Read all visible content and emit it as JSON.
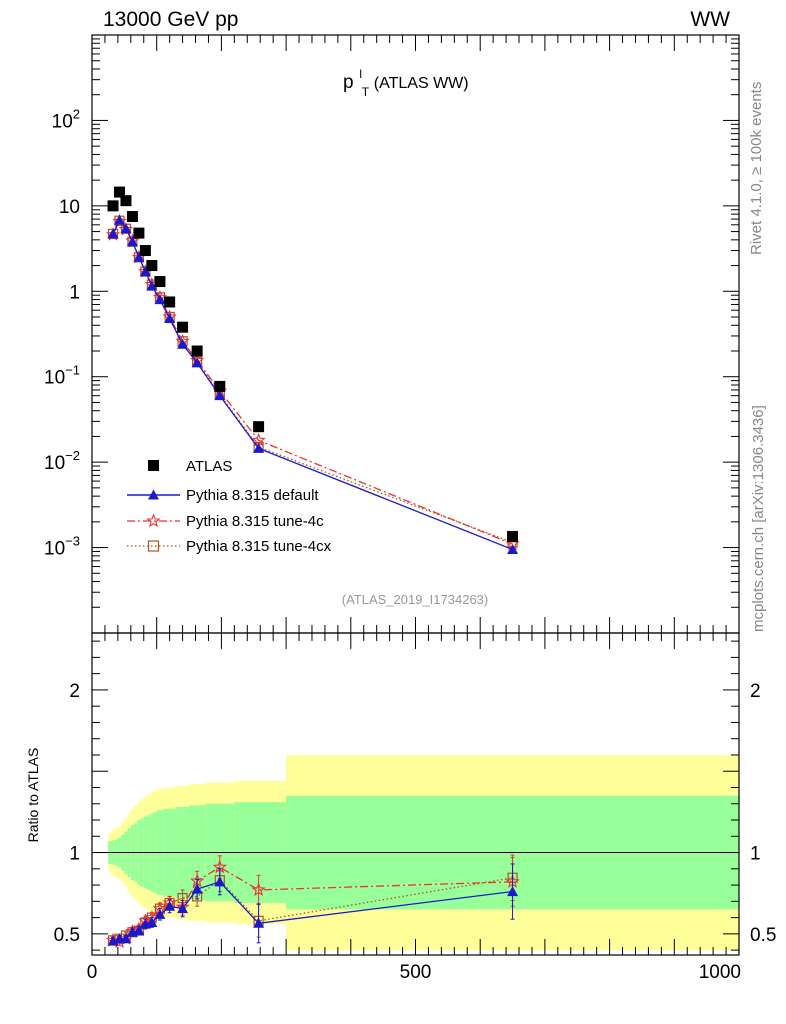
{
  "header": {
    "left": "13000 GeV pp",
    "right": "WW"
  },
  "side_labels": {
    "rivet": "Rivet 4.1.0, ≥ 100k events",
    "mcplots": "mcplots.cern.ch [arXiv:1306.3436]"
  },
  "chart_data": [
    {
      "type": "scatter",
      "panel": "main",
      "title": {
        "base": "p",
        "sup": "l",
        "sub": "T",
        "suffix": " (ATLAS WW)"
      },
      "analysis_tag": "(ATLAS_2019_I1734263)",
      "yscale": "log",
      "ylim": [
        0.0001,
        1000
      ],
      "xlim": [
        0,
        1000
      ],
      "ytick_labels": [
        {
          "value": 0.001,
          "base": "10",
          "exp": "−3"
        },
        {
          "value": 0.01,
          "base": "10",
          "exp": "−2"
        },
        {
          "value": 0.1,
          "base": "10",
          "exp": "−1"
        },
        {
          "value": 1,
          "base": "1",
          "exp": ""
        },
        {
          "value": 10,
          "base": "10",
          "exp": ""
        },
        {
          "value": 100,
          "base": "10",
          "exp": "2"
        }
      ],
      "legend_position": "bottom-left",
      "legend": [
        "ATLAS",
        "Pythia 8.315 default",
        "Pythia 8.315 tune-4c",
        "Pythia 8.315 tune-4cx"
      ],
      "x": [
        32.5,
        42.5,
        52.5,
        62.5,
        72.5,
        82.5,
        92.5,
        105,
        120,
        140,
        162.5,
        197.5,
        257.5,
        650
      ],
      "series": [
        {
          "name": "ATLAS",
          "color": "#000000",
          "marker": "square",
          "values": [
            10,
            14.5,
            11.5,
            7.5,
            4.8,
            3.0,
            2.0,
            1.3,
            0.75,
            0.38,
            0.2,
            0.077,
            0.026,
            0.00135
          ]
        },
        {
          "name": "Pythia 8.315 default",
          "color": "#1a1acc",
          "marker": "triangle",
          "line": "solid",
          "values": [
            4.7,
            6.8,
            5.4,
            3.8,
            2.5,
            1.7,
            1.15,
            0.8,
            0.48,
            0.24,
            0.145,
            0.06,
            0.0145,
            0.00095
          ]
        },
        {
          "name": "Pythia 8.315 tune-4c",
          "color": "#ee3333",
          "marker": "star",
          "line": "dashdot",
          "values": [
            4.6,
            6.6,
            5.3,
            3.9,
            2.5,
            1.7,
            1.2,
            0.85,
            0.5,
            0.26,
            0.155,
            0.068,
            0.018,
            0.0011
          ]
        },
        {
          "name": "Pythia 8.315 tune-4cx",
          "color": "#aa5522",
          "marker": "square-open",
          "line": "dotted",
          "values": [
            4.7,
            6.7,
            5.4,
            3.8,
            2.5,
            1.7,
            1.2,
            0.85,
            0.5,
            0.26,
            0.15,
            0.062,
            0.015,
            0.00115
          ]
        }
      ]
    },
    {
      "type": "scatter",
      "panel": "ratio",
      "ylabel": "Ratio to ATLAS",
      "ylim": [
        0.37,
        2.35
      ],
      "xlim": [
        0,
        1000
      ],
      "xtick_labels": [
        {
          "value": 0,
          "label": "0"
        },
        {
          "value": 500,
          "label": "500"
        },
        {
          "value": 1000,
          "label": "1000"
        }
      ],
      "ytick_labels": [
        {
          "value": 0.5,
          "label": "0.5"
        },
        {
          "value": 1,
          "label": "1"
        },
        {
          "value": 2,
          "label": "2"
        }
      ],
      "band_edges": [
        25,
        30,
        35,
        40,
        45,
        50,
        55,
        60,
        65,
        70,
        75,
        80,
        85,
        90,
        95,
        100,
        110,
        130,
        150,
        175,
        220,
        300,
        1000
      ],
      "band_inner": [
        0.07,
        0.075,
        0.08,
        0.09,
        0.11,
        0.13,
        0.15,
        0.17,
        0.18,
        0.2,
        0.21,
        0.22,
        0.23,
        0.24,
        0.25,
        0.26,
        0.27,
        0.28,
        0.29,
        0.3,
        0.31,
        0.35
      ],
      "band_outer": [
        0.12,
        0.14,
        0.15,
        0.16,
        0.18,
        0.21,
        0.24,
        0.27,
        0.29,
        0.31,
        0.33,
        0.34,
        0.36,
        0.37,
        0.38,
        0.39,
        0.4,
        0.41,
        0.42,
        0.43,
        0.44,
        0.6
      ],
      "band_colors": {
        "outer": "#ffff99",
        "inner": "#99ff99"
      },
      "x": [
        32.5,
        42.5,
        52.5,
        62.5,
        72.5,
        82.5,
        92.5,
        105,
        120,
        140,
        162.5,
        197.5,
        257.5,
        650
      ],
      "series": [
        {
          "name": "Pythia 8.315 default",
          "color": "#1a1acc",
          "marker": "triangle",
          "line": "solid",
          "values": [
            0.455,
            0.47,
            0.47,
            0.51,
            0.52,
            0.56,
            0.57,
            0.62,
            0.67,
            0.655,
            0.775,
            0.82,
            0.565,
            0.76
          ],
          "errors": [
            0.02,
            0.02,
            0.02,
            0.025,
            0.025,
            0.03,
            0.03,
            0.035,
            0.04,
            0.05,
            0.06,
            0.08,
            0.12,
            0.17
          ]
        },
        {
          "name": "Pythia 8.315 tune-4c",
          "color": "#ee3333",
          "marker": "star",
          "line": "dashdot",
          "values": [
            0.46,
            0.45,
            0.47,
            0.515,
            0.53,
            0.58,
            0.6,
            0.655,
            0.69,
            0.665,
            0.825,
            0.91,
            0.77,
            0.82
          ],
          "errors": [
            0.02,
            0.02,
            0.02,
            0.025,
            0.025,
            0.03,
            0.03,
            0.035,
            0.04,
            0.05,
            0.06,
            0.07,
            0.09,
            0.15
          ]
        },
        {
          "name": "Pythia 8.315 tune-4cx",
          "color": "#aa5522",
          "marker": "square-open",
          "line": "dotted",
          "values": [
            0.46,
            0.47,
            0.49,
            0.51,
            0.52,
            0.57,
            0.6,
            0.655,
            0.69,
            0.72,
            0.73,
            0.83,
            0.58,
            0.845
          ],
          "errors": [
            0.02,
            0.02,
            0.02,
            0.025,
            0.025,
            0.03,
            0.03,
            0.035,
            0.04,
            0.05,
            0.06,
            0.07,
            0.1,
            0.14
          ]
        }
      ]
    }
  ]
}
